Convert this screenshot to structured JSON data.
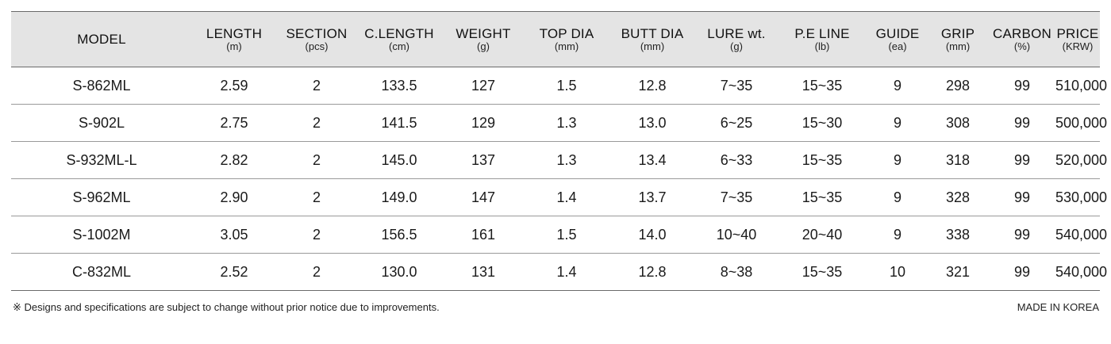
{
  "table": {
    "headers": [
      {
        "label": "MODEL",
        "unit": ""
      },
      {
        "label": "LENGTH",
        "unit": "(m)"
      },
      {
        "label": "SECTION",
        "unit": "(pcs)"
      },
      {
        "label": "C.LENGTH",
        "unit": "(cm)"
      },
      {
        "label": "WEIGHT",
        "unit": "(g)"
      },
      {
        "label": "TOP DIA",
        "unit": "(mm)"
      },
      {
        "label": "BUTT DIA",
        "unit": "(mm)"
      },
      {
        "label": "LURE wt.",
        "unit": "(g)"
      },
      {
        "label": "P.E LINE",
        "unit": "(lb)"
      },
      {
        "label": "GUIDE",
        "unit": "(ea)"
      },
      {
        "label": "GRIP",
        "unit": "(mm)"
      },
      {
        "label": "CARBON",
        "unit": "(%)"
      },
      {
        "label": "PRICE",
        "unit": "(KRW)"
      }
    ],
    "rows": [
      [
        "S-862ML",
        "2.59",
        "2",
        "133.5",
        "127",
        "1.5",
        "12.8",
        "7~35",
        "15~35",
        "9",
        "298",
        "99",
        "510,000"
      ],
      [
        "S-902L",
        "2.75",
        "2",
        "141.5",
        "129",
        "1.3",
        "13.0",
        "6~25",
        "15~30",
        "9",
        "308",
        "99",
        "500,000"
      ],
      [
        "S-932ML-L",
        "2.82",
        "2",
        "145.0",
        "137",
        "1.3",
        "13.4",
        "6~33",
        "15~35",
        "9",
        "318",
        "99",
        "520,000"
      ],
      [
        "S-962ML",
        "2.90",
        "2",
        "149.0",
        "147",
        "1.4",
        "13.7",
        "7~35",
        "15~35",
        "9",
        "328",
        "99",
        "530,000"
      ],
      [
        "S-1002M",
        "3.05",
        "2",
        "156.5",
        "161",
        "1.5",
        "14.0",
        "10~40",
        "20~40",
        "9",
        "338",
        "99",
        "540,000"
      ],
      [
        "C-832ML",
        "2.52",
        "2",
        "130.0",
        "131",
        "1.4",
        "12.8",
        "8~38",
        "15~35",
        "10",
        "321",
        "99",
        "540,000"
      ]
    ]
  },
  "footer": {
    "note": "※ Designs and specifications are subject to change without prior notice due to improvements.",
    "made_in": "MADE IN KOREA"
  }
}
